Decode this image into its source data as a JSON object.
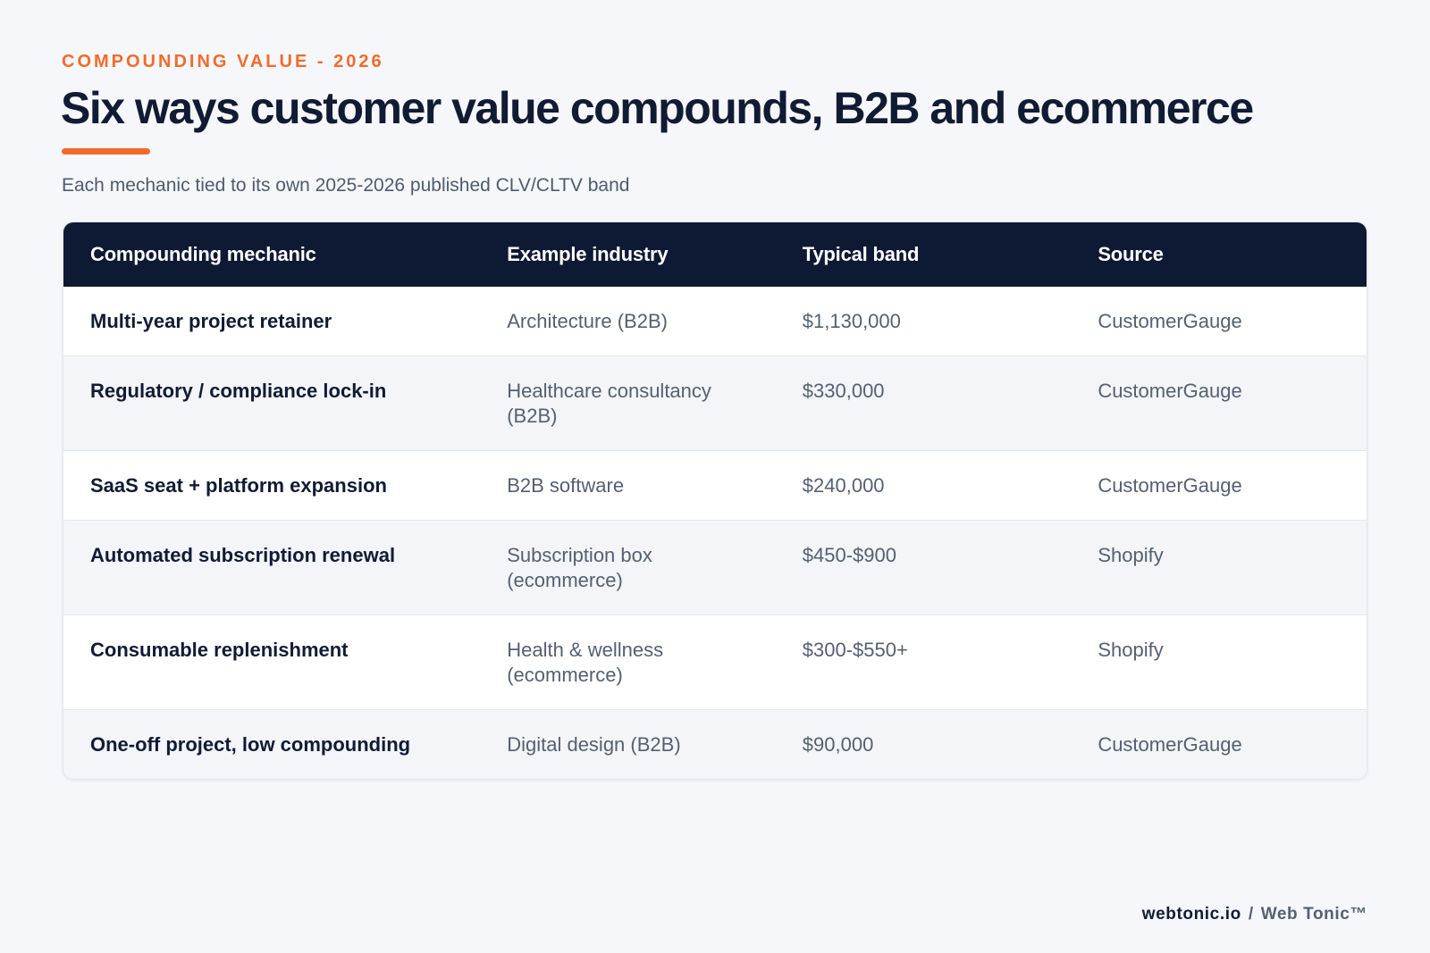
{
  "header": {
    "eyebrow": "COMPOUNDING VALUE - 2026",
    "title": "Six ways customer value compounds, B2B and ecommerce",
    "subtitle": "Each mechanic tied to its own 2025-2026 published CLV/CLTV band"
  },
  "chart_data": {
    "type": "table",
    "columns": [
      "Compounding mechanic",
      "Example industry",
      "Typical band",
      "Source"
    ],
    "rows": [
      [
        "Multi-year project retainer",
        "Architecture (B2B)",
        "$1,130,000",
        "CustomerGauge"
      ],
      [
        "Regulatory / compliance lock-in",
        "Healthcare consultancy (B2B)",
        "$330,000",
        "CustomerGauge"
      ],
      [
        "SaaS seat + platform expansion",
        "B2B software",
        "$240,000",
        "CustomerGauge"
      ],
      [
        "Automated subscription renewal",
        "Subscription box (ecommerce)",
        "$450-$900",
        "Shopify"
      ],
      [
        "Consumable replenishment",
        "Health & wellness (ecommerce)",
        "$300-$550+",
        "Shopify"
      ],
      [
        "One-off project, low compounding",
        "Digital design (B2B)",
        "$90,000",
        "CustomerGauge"
      ]
    ]
  },
  "footer": {
    "domain": "webtonic.io",
    "separator": "/",
    "brand": "Web Tonic™"
  },
  "colors": {
    "accent": "#f26b2b",
    "header_bg": "#0e1a33",
    "page_bg": "#f5f7fa"
  }
}
